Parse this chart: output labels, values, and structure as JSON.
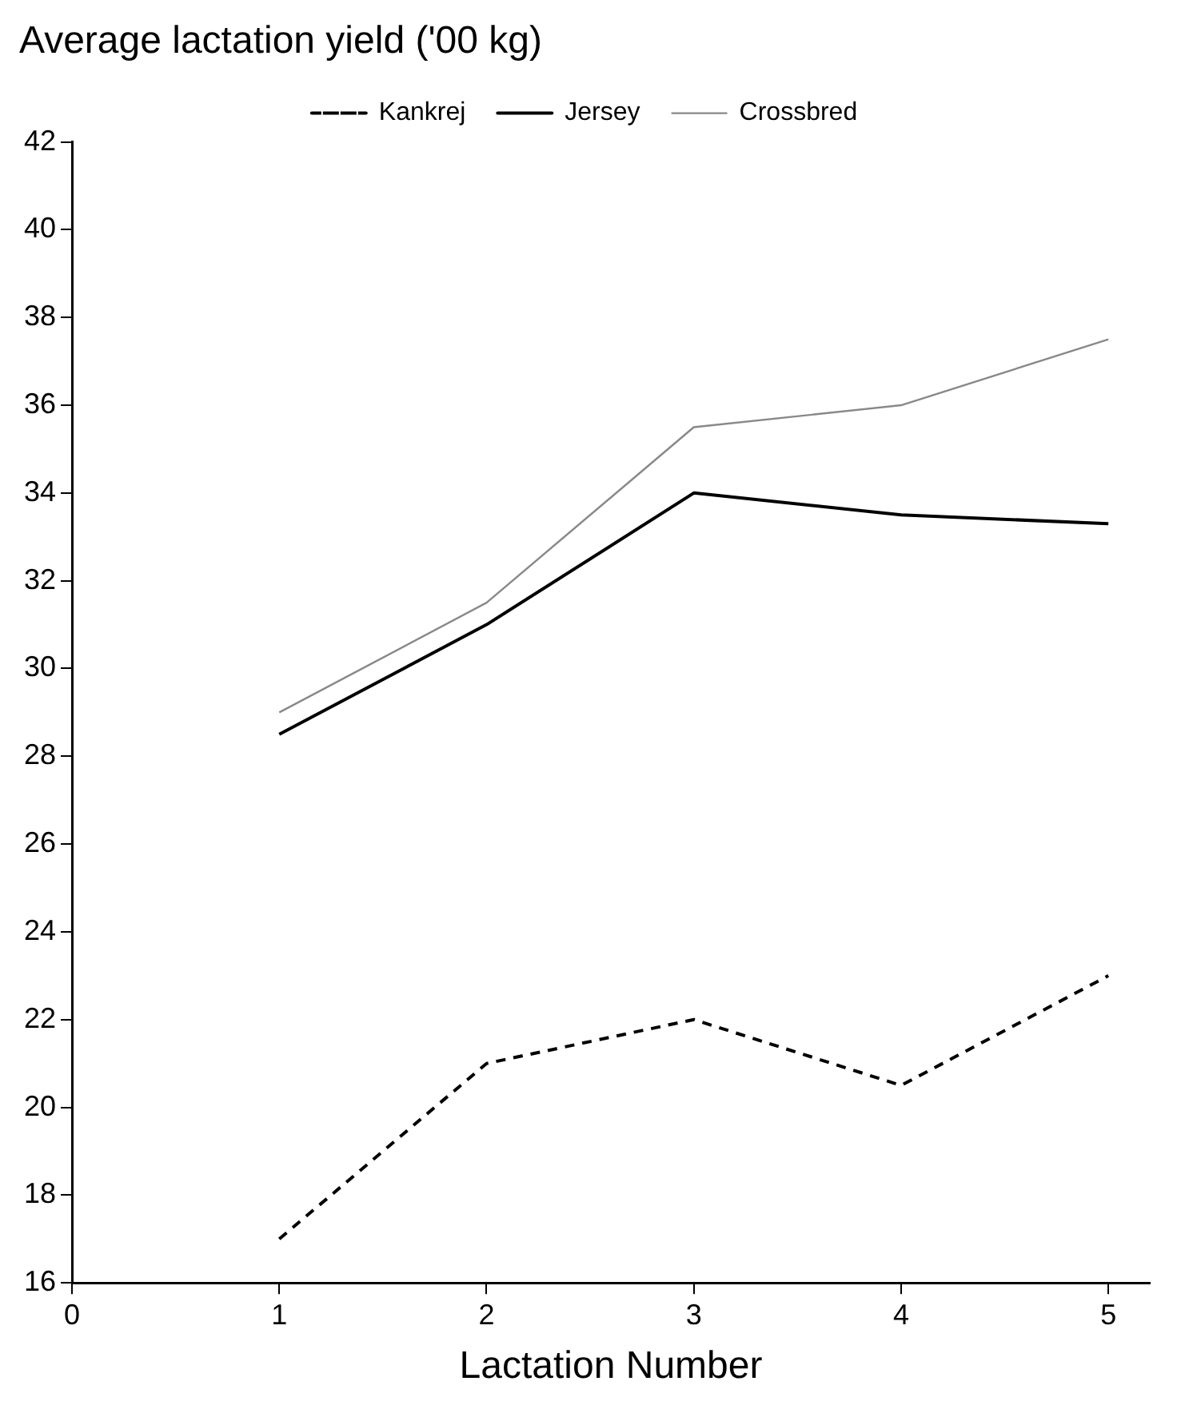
{
  "chart_data": {
    "type": "line",
    "title": "Average lactation yield ('00 kg)",
    "xlabel": "Lactation Number",
    "x": [
      1,
      2,
      3,
      4,
      5
    ],
    "series": [
      {
        "name": "Kankrej",
        "color": "#000000",
        "line_style": "dashed",
        "values": [
          17,
          21,
          22,
          20.5,
          23
        ]
      },
      {
        "name": "Jersey",
        "color": "#000000",
        "line_style": "solid",
        "values": [
          28.5,
          31,
          34,
          33.5,
          33.3
        ]
      },
      {
        "name": "Crossbred",
        "color": "#888888",
        "line_style": "solid",
        "values": [
          29,
          31.5,
          35.5,
          36,
          37.5
        ]
      }
    ],
    "xlim": [
      0,
      5.2
    ],
    "xticks": [
      0,
      1,
      2,
      3,
      4,
      5
    ],
    "ylim": [
      16,
      42
    ],
    "yticks": [
      16,
      18,
      20,
      22,
      24,
      26,
      28,
      30,
      32,
      34,
      36,
      38,
      40,
      42
    ],
    "grid": false,
    "legend": "top",
    "marker": "none"
  }
}
